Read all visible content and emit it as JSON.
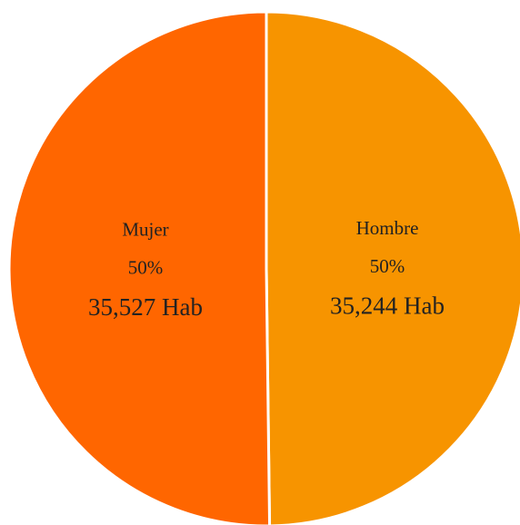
{
  "chart_data": {
    "type": "pie",
    "categories": [
      "Hombre",
      "Mujer"
    ],
    "values": [
      35244,
      35527
    ],
    "value_labels": [
      "35,244 Hab",
      "35,527 Hab"
    ],
    "percent_labels": [
      "50%",
      "50%"
    ],
    "colors": [
      "#f79400",
      "#ff6600"
    ]
  }
}
